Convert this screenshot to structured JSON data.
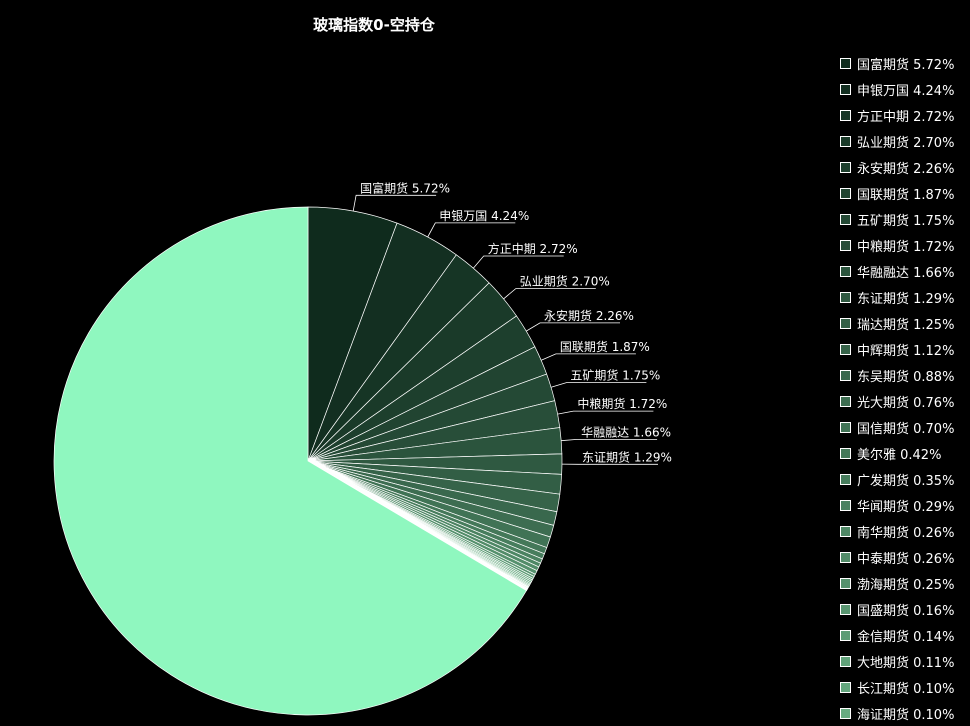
{
  "chart_data": {
    "type": "pie",
    "title": "玻璃指数0-空持仓",
    "legend_position": "right",
    "labels_shown_count": 10,
    "slices": [
      {
        "name": "国富期货",
        "label": "5.72%",
        "value": 5.72,
        "color": "#0f2b1d"
      },
      {
        "name": "申银万国",
        "label": "4.24%",
        "value": 4.24,
        "color": "#132f21"
      },
      {
        "name": "方正中期",
        "label": "2.72%",
        "value": 2.72,
        "color": "#163525"
      },
      {
        "name": "弘业期货",
        "label": "2.70%",
        "value": 2.7,
        "color": "#1a3a29"
      },
      {
        "name": "永安期货",
        "label": "2.26%",
        "value": 2.26,
        "color": "#1d3f2d"
      },
      {
        "name": "国联期货",
        "label": "1.87%",
        "value": 1.87,
        "color": "#214431"
      },
      {
        "name": "五矿期货",
        "label": "1.75%",
        "value": 1.75,
        "color": "#244935"
      },
      {
        "name": "中粮期货",
        "label": "1.72%",
        "value": 1.72,
        "color": "#284e39"
      },
      {
        "name": "华融融达",
        "label": "1.66%",
        "value": 1.66,
        "color": "#2b543d"
      },
      {
        "name": "东证期货",
        "label": "1.29%",
        "value": 1.29,
        "color": "#2f5941"
      },
      {
        "name": "瑞达期货",
        "label": "1.25%",
        "value": 1.25,
        "color": "#325e45"
      },
      {
        "name": "中辉期货",
        "label": "1.12%",
        "value": 1.12,
        "color": "#366349"
      },
      {
        "name": "东吴期货",
        "label": "0.88%",
        "value": 0.88,
        "color": "#39684d"
      },
      {
        "name": "光大期货",
        "label": "0.76%",
        "value": 0.76,
        "color": "#3d6d51"
      },
      {
        "name": "国信期货",
        "label": "0.70%",
        "value": 0.7,
        "color": "#407355"
      },
      {
        "name": "美尔雅",
        "label": "0.42%",
        "value": 0.42,
        "color": "#447859"
      },
      {
        "name": "广发期货",
        "label": "0.35%",
        "value": 0.35,
        "color": "#477d5d"
      },
      {
        "name": "华闻期货",
        "label": "0.29%",
        "value": 0.29,
        "color": "#4b8261"
      },
      {
        "name": "南华期货",
        "label": "0.26%",
        "value": 0.26,
        "color": "#4e8765"
      },
      {
        "name": "中泰期货",
        "label": "0.26%",
        "value": 0.26,
        "color": "#528c69"
      },
      {
        "name": "渤海期货",
        "label": "0.25%",
        "value": 0.25,
        "color": "#55916d"
      },
      {
        "name": "国盛期货",
        "label": "0.16%",
        "value": 0.16,
        "color": "#599671"
      },
      {
        "name": "金信期货",
        "label": "0.14%",
        "value": 0.14,
        "color": "#5c9c75"
      },
      {
        "name": "大地期货",
        "label": "0.11%",
        "value": 0.11,
        "color": "#60a179"
      },
      {
        "name": "长江期货",
        "label": "0.10%",
        "value": 0.1,
        "color": "#63a67d"
      },
      {
        "name": "海证期货",
        "label": "0.10%",
        "value": 0.1,
        "color": "#67ab81"
      },
      {
        "value": 0.09,
        "color": "#6bb085"
      },
      {
        "value": 0.08,
        "color": "#6fb589"
      },
      {
        "value": 0.07,
        "color": "#73ba8d"
      },
      {
        "value": 0.06,
        "color": "#77bf91"
      },
      {
        "value": 0.05,
        "color": "#7bc495"
      },
      {
        "value": 0.05,
        "color": "#7fc999"
      },
      {
        "value": 0.04,
        "color": "#83ce9d"
      },
      {
        "value": 0.04,
        "color": "#87d3a1"
      },
      {
        "value": 0.03,
        "color": "#8bd8a5"
      },
      {
        "value": 0.03,
        "color": "#8fdda9"
      },
      {
        "value": 0.02,
        "color": "#93e2ad"
      },
      {
        "value": 66.71,
        "color": "#8ff7bf"
      }
    ]
  }
}
